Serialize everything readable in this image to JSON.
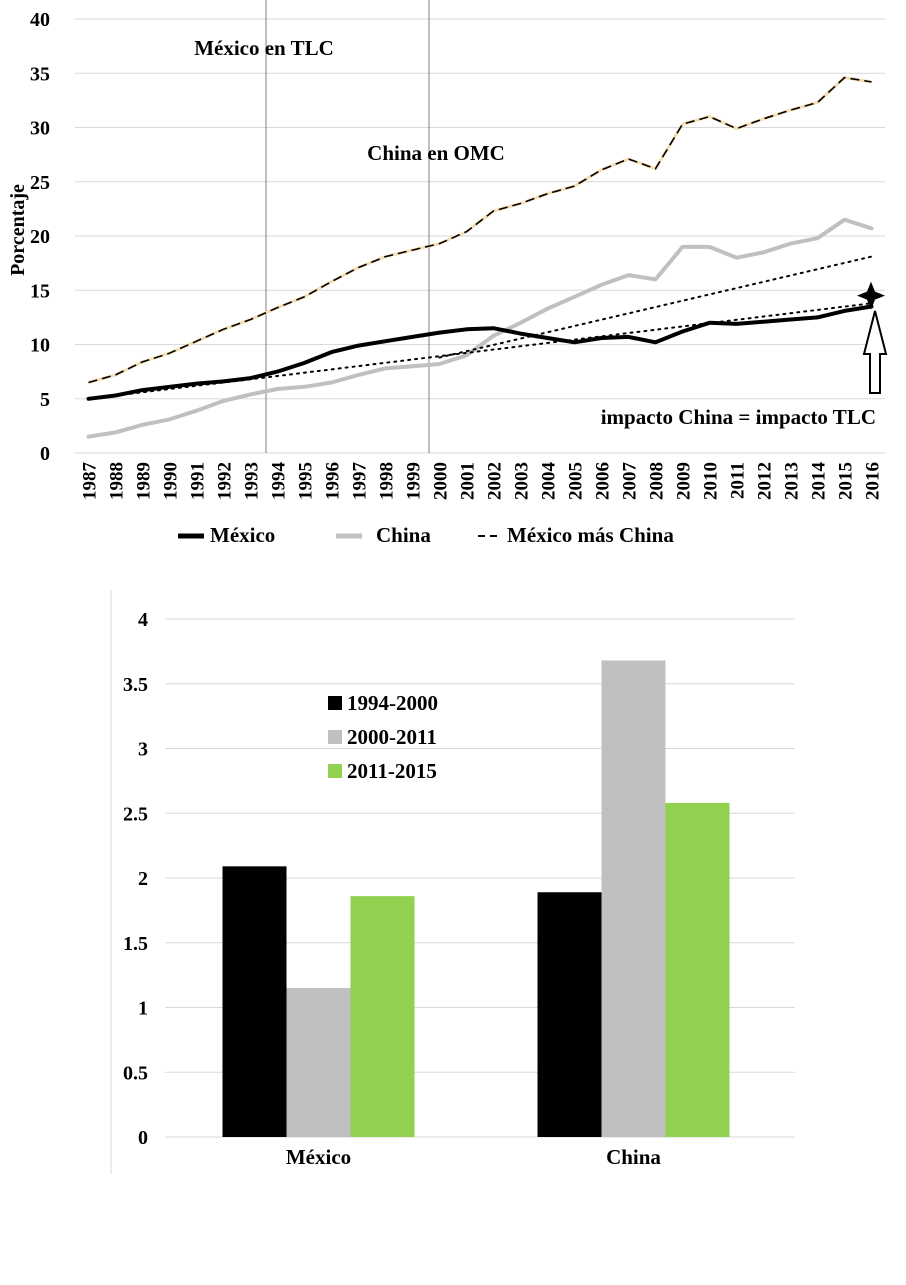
{
  "chart_data": [
    {
      "type": "line",
      "title": "",
      "ylabel": "Porcentaje",
      "xlabel": "",
      "ylim": [
        0,
        40
      ],
      "yticks": [
        0,
        5,
        10,
        15,
        20,
        25,
        30,
        35,
        40
      ],
      "categories": [
        "1987",
        "1988",
        "1989",
        "1990",
        "1991",
        "1992",
        "1993",
        "1994",
        "1995",
        "1996",
        "1997",
        "1998",
        "1999",
        "2000",
        "2001",
        "2002",
        "2003",
        "2004",
        "2005",
        "2006",
        "2007",
        "2008",
        "2009",
        "2010",
        "2011",
        "2012",
        "2013",
        "2014",
        "2015",
        "2016"
      ],
      "grid": true,
      "series": [
        {
          "name": "México",
          "style": "solid",
          "color": "#000000",
          "values": [
            5.0,
            5.3,
            5.8,
            6.1,
            6.4,
            6.6,
            6.9,
            7.5,
            8.3,
            9.3,
            9.9,
            10.3,
            10.7,
            11.1,
            11.4,
            11.5,
            11.0,
            10.6,
            10.2,
            10.6,
            10.7,
            10.2,
            11.2,
            12.0,
            11.9,
            12.1,
            12.3,
            12.5,
            13.1,
            13.5
          ]
        },
        {
          "name": "China",
          "style": "solid",
          "color": "#c0c0c0",
          "values": [
            1.5,
            1.9,
            2.6,
            3.1,
            3.9,
            4.8,
            5.4,
            5.9,
            6.1,
            6.5,
            7.2,
            7.8,
            8.0,
            8.2,
            9.0,
            10.8,
            12.0,
            13.3,
            14.4,
            15.5,
            16.4,
            16.0,
            19.0,
            19.0,
            18.0,
            18.5,
            19.3,
            19.8,
            21.5,
            20.7
          ]
        },
        {
          "name": "México más China",
          "style": "dashed",
          "color": "#000000",
          "values": [
            6.5,
            7.2,
            8.4,
            9.2,
            10.3,
            11.4,
            12.3,
            13.4,
            14.4,
            15.8,
            17.1,
            18.1,
            18.7,
            19.3,
            20.4,
            22.3,
            23.0,
            23.9,
            24.6,
            26.1,
            27.1,
            26.2,
            30.3,
            31.0,
            29.9,
            30.8,
            31.6,
            32.3,
            34.6,
            34.2
          ]
        },
        {
          "name": "Tendencia México",
          "style": "dotted",
          "color": "#000000",
          "legend": false,
          "x": [
            "1987",
            "1994",
            "2016"
          ],
          "values": [
            5.0,
            7.1,
            13.8
          ]
        },
        {
          "name": "Tendencia China",
          "style": "dotted",
          "color": "#000000",
          "legend": false,
          "x": [
            "2000",
            "2016"
          ],
          "values": [
            8.8,
            18.1
          ]
        }
      ],
      "annotations": {
        "vline_tlc_year": "1994",
        "vline_omc_year": "2000",
        "tlc_label": "México en TLC",
        "omc_label": "China en OMC",
        "impact_label": "impacto China = impacto TLC",
        "star_value": 15.8,
        "star_year": "2016"
      },
      "legend_position": "bottom"
    },
    {
      "type": "bar",
      "title": "",
      "categories": [
        "México",
        "China"
      ],
      "ylim": [
        0,
        4
      ],
      "yticks": [
        "0",
        "0.5",
        "1",
        "1.5",
        "2",
        "2.5",
        "3",
        "3.5",
        "4"
      ],
      "grid": true,
      "series": [
        {
          "name": "1994-2000",
          "color": "#000000",
          "values": [
            2.09,
            1.89
          ]
        },
        {
          "name": "2000-2011",
          "color": "#c0c0c0",
          "values": [
            1.15,
            3.68
          ]
        },
        {
          "name": "2011-2015",
          "color": "#92d050",
          "values": [
            1.86,
            2.58
          ]
        }
      ],
      "legend_position": "top-left"
    }
  ]
}
